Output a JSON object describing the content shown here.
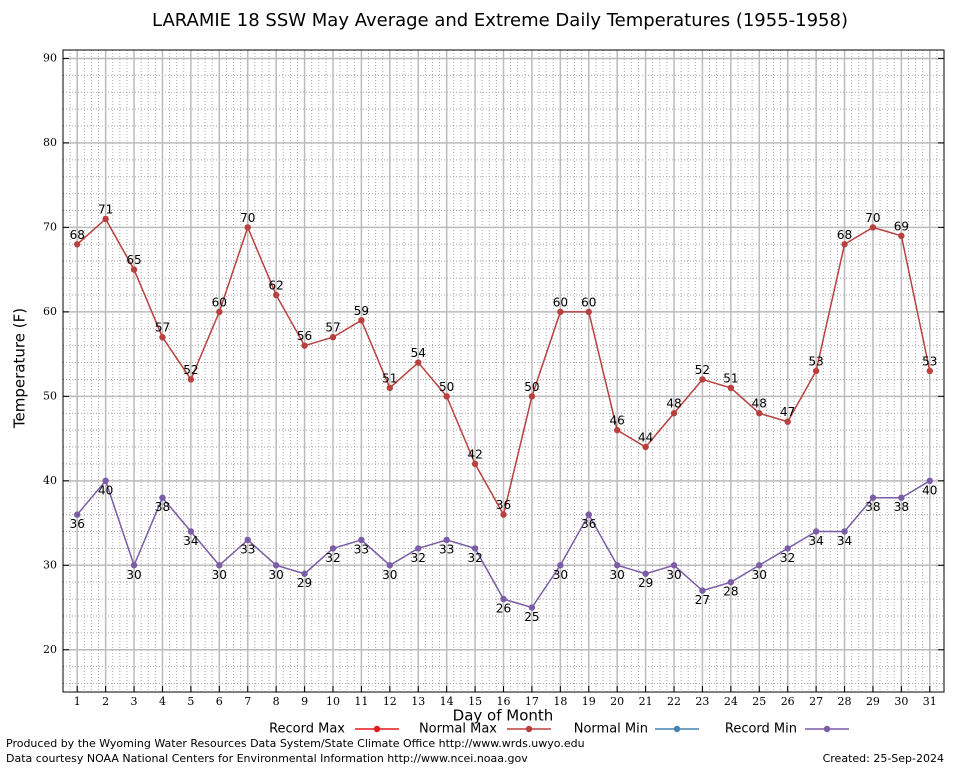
{
  "chart_data": {
    "type": "line",
    "title": "LARAMIE 18 SSW May Average and Extreme Daily Temperatures (1955-1958)",
    "x_label": "Day of Month",
    "y_label": "Temperature (F)",
    "footer": [
      "Produced by the Wyoming Water Resources Data System/State Climate Office http://www.wrds.uwyo.edu",
      "Data courtesy NOAA National Centers for Environmental Information http://www.ncei.noaa.gov"
    ],
    "created": "Created:  25-Sep-2024",
    "x": [
      1,
      2,
      3,
      4,
      5,
      6,
      7,
      8,
      9,
      10,
      11,
      12,
      13,
      14,
      15,
      16,
      17,
      18,
      19,
      20,
      21,
      22,
      23,
      24,
      25,
      26,
      27,
      28,
      29,
      30,
      31
    ],
    "xlim": [
      0.5,
      31.5
    ],
    "xticks": [
      1,
      2,
      3,
      4,
      5,
      6,
      7,
      8,
      9,
      10,
      11,
      12,
      13,
      14,
      15,
      16,
      17,
      18,
      19,
      20,
      21,
      22,
      23,
      24,
      25,
      26,
      27,
      28,
      29,
      30,
      31
    ],
    "ylim": [
      15,
      91
    ],
    "yticks": [
      20,
      30,
      40,
      50,
      60,
      70,
      80,
      90
    ],
    "grid": true,
    "minor_grid": {
      "x_step": 0.25,
      "y_step": 2
    },
    "series": [
      {
        "name": "Record Max",
        "color": "#e41a1c",
        "label_side": "above",
        "values": [
          null,
          null,
          null,
          null,
          null,
          null,
          null,
          null,
          null,
          null,
          null,
          null,
          null,
          null,
          null,
          null,
          null,
          null,
          null,
          null,
          null,
          null,
          null,
          null,
          null,
          null,
          null,
          null,
          null,
          null,
          null
        ]
      },
      {
        "name": "Normal Max",
        "color": "#b8413f",
        "label_side": "above",
        "values": [
          68,
          71,
          65,
          57,
          52,
          60,
          70,
          62,
          56,
          57,
          59,
          51,
          54,
          50,
          42,
          36,
          50,
          60,
          60,
          46,
          44,
          48,
          52,
          51,
          48,
          47,
          53,
          68,
          70,
          69,
          53
        ]
      },
      {
        "name": "Normal Min",
        "color": "#4682b4",
        "label_side": "below",
        "values": [
          null,
          null,
          null,
          null,
          null,
          null,
          null,
          null,
          null,
          null,
          null,
          null,
          null,
          null,
          null,
          null,
          null,
          null,
          null,
          null,
          null,
          null,
          null,
          null,
          null,
          null,
          null,
          null,
          null,
          null,
          null
        ]
      },
      {
        "name": "Record Min",
        "color": "#7a5da6",
        "label_side": "below",
        "values": [
          36,
          40,
          30,
          38,
          34,
          30,
          33,
          30,
          29,
          32,
          33,
          30,
          32,
          33,
          32,
          26,
          25,
          30,
          36,
          30,
          29,
          30,
          27,
          28,
          30,
          32,
          34,
          34,
          38,
          38,
          40
        ]
      }
    ]
  }
}
